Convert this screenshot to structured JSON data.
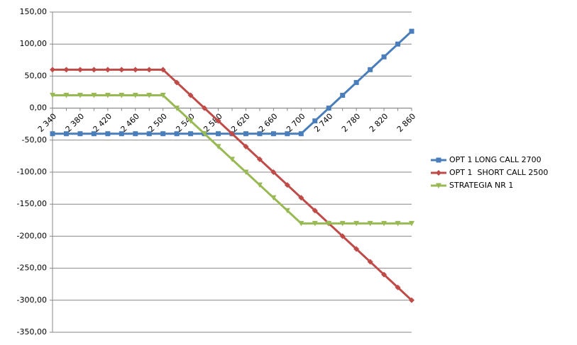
{
  "chart_data": {
    "type": "line",
    "categories": [
      "2 340",
      null,
      "2 380",
      null,
      "2 420",
      null,
      "2 460",
      null,
      "2 500",
      null,
      "2 540",
      null,
      "2 580",
      null,
      "2 620",
      null,
      "2 660",
      null,
      "2 700",
      null,
      "2 740",
      null,
      "2 780",
      null,
      "2 820",
      null,
      "2 860"
    ],
    "series": [
      {
        "name": "OPT 1 LONG CALL 2700",
        "color": "#4a7ebb",
        "marker": "square",
        "values": [
          -40,
          -40,
          -40,
          -40,
          -40,
          -40,
          -40,
          -40,
          -40,
          -40,
          -40,
          -40,
          -40,
          -40,
          -40,
          -40,
          -40,
          -40,
          -40,
          -20,
          0,
          20,
          40,
          60,
          80,
          100,
          120
        ]
      },
      {
        "name": "OPT 1  SHORT CALL 2500",
        "color": "#be4b48",
        "marker": "diamond",
        "values": [
          60,
          60,
          60,
          60,
          60,
          60,
          60,
          60,
          60,
          40,
          20,
          0,
          -20,
          -40,
          -60,
          -80,
          -100,
          -120,
          -140,
          -160,
          -180,
          -200,
          -220,
          -240,
          -260,
          -280,
          -300
        ]
      },
      {
        "name": "STRATEGIA NR 1",
        "color": "#98b954",
        "marker": "triangle-down",
        "values": [
          20,
          20,
          20,
          20,
          20,
          20,
          20,
          20,
          20,
          0,
          -20,
          -40,
          -60,
          -80,
          -100,
          -120,
          -140,
          -160,
          -180,
          -180,
          -180,
          -180,
          -180,
          -180,
          -180,
          -180,
          -180
        ]
      }
    ],
    "ylim": [
      -350,
      150
    ],
    "yticks": [
      {
        "value": -350,
        "label": "-350,00"
      },
      {
        "value": -300,
        "label": "-300,00"
      },
      {
        "value": -250,
        "label": "-250,00"
      },
      {
        "value": -200,
        "label": "-200,00"
      },
      {
        "value": -150,
        "label": "-150,00"
      },
      {
        "value": -100,
        "label": "-100,00"
      },
      {
        "value": -50,
        "label": "-50,00"
      },
      {
        "value": 0,
        "label": "0,00"
      },
      {
        "value": 50,
        "label": "50,00"
      },
      {
        "value": 100,
        "label": "100,00"
      },
      {
        "value": 150,
        "label": "150,00"
      }
    ],
    "grid": true,
    "legend": "right"
  }
}
